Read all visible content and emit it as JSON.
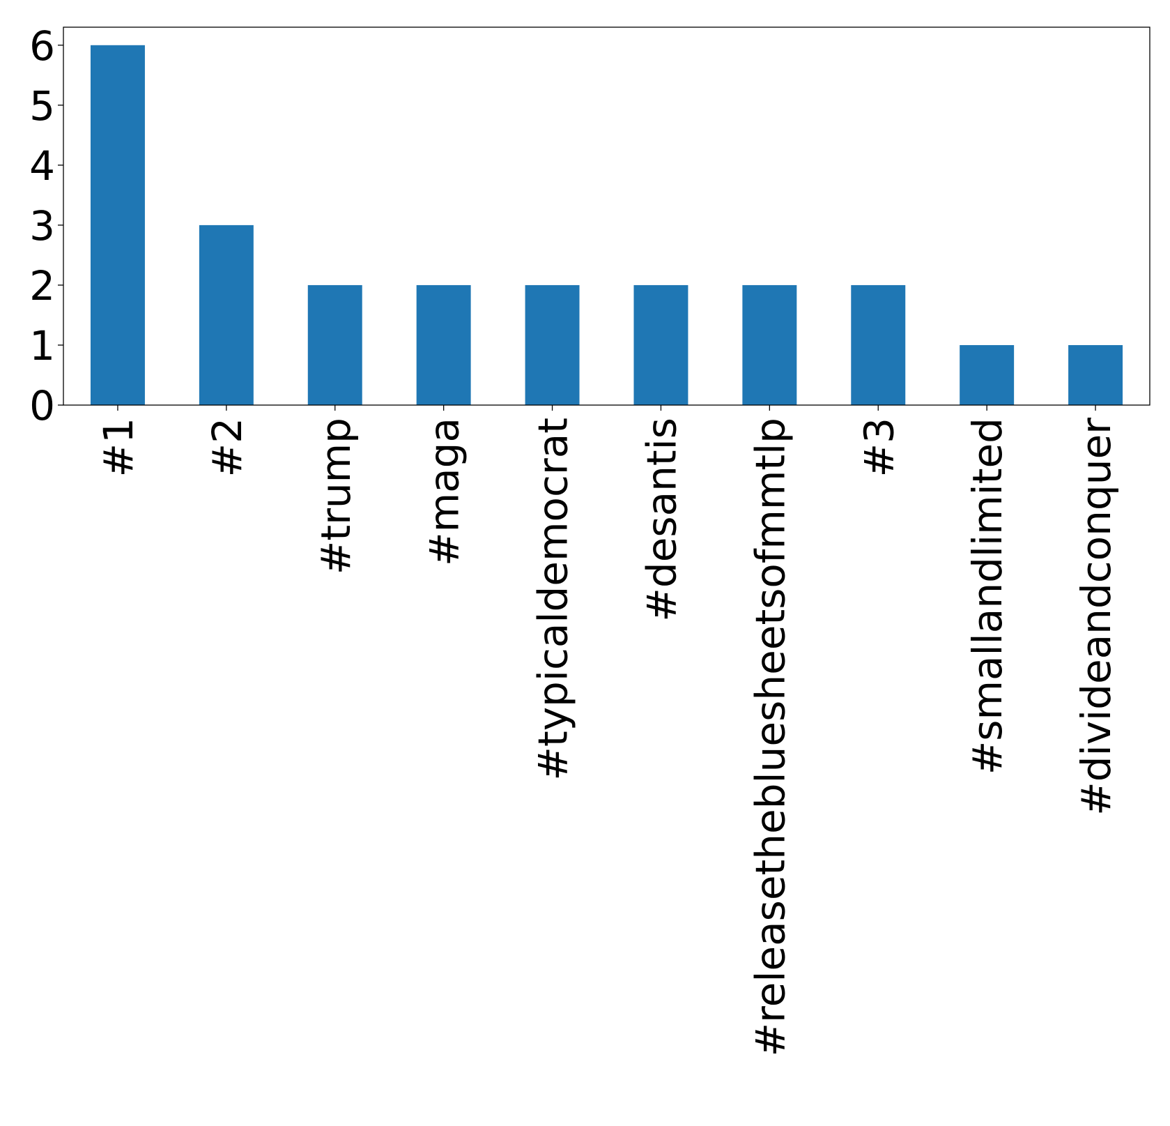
{
  "chart_data": {
    "type": "bar",
    "title": "",
    "xlabel": "",
    "ylabel": "",
    "categories": [
      "#1",
      "#2",
      "#trump",
      "#maga",
      "#typicaldemocrat",
      "#desantis",
      "#releasethebluesheetsofmmtlp",
      "#3",
      "#smallandlimited",
      "#divideandconquer"
    ],
    "values": [
      6,
      3,
      2,
      2,
      2,
      2,
      2,
      2,
      1,
      1
    ],
    "ylim": [
      0,
      6.3
    ],
    "yticks": [
      0,
      1,
      2,
      3,
      4,
      5,
      6
    ],
    "ytick_labels": [
      "0",
      "1",
      "2",
      "3",
      "4",
      "5",
      "6"
    ],
    "bar_color": "#1f77b4",
    "grid": false,
    "legend": "none"
  }
}
